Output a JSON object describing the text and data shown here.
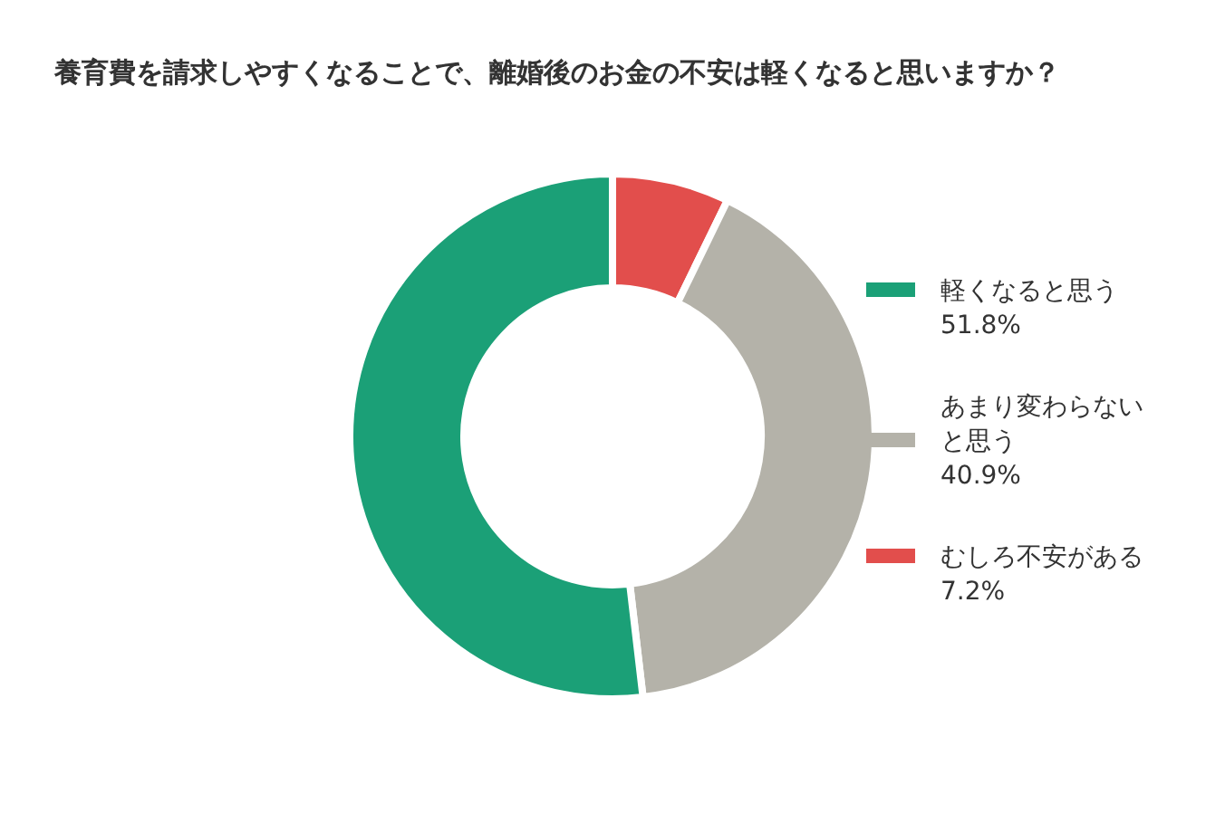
{
  "chart_data": {
    "type": "donut",
    "title": "養育費を請求しやすくなることで、離婚後のお金の不安は軽くなると思いますか？",
    "categories": [
      "軽くなると思う",
      "あまり変わらないと思う",
      "むしろ不安がある"
    ],
    "values": [
      51.8,
      40.9,
      7.2
    ],
    "value_labels": [
      "51.8%",
      "40.9%",
      "7.2%"
    ],
    "colors": [
      "#1ba077",
      "#b4b2a9",
      "#e24e4c"
    ],
    "legend": "right"
  }
}
